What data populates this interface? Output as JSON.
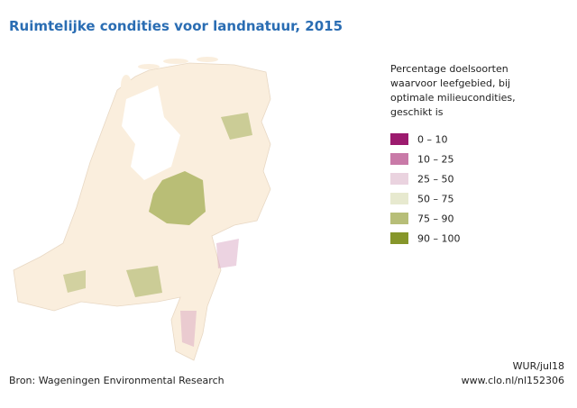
{
  "header": {
    "title": "Ruimtelijke condities voor landnatuur, 2015"
  },
  "legend": {
    "title_lines": [
      "Percentage doelsoorten",
      "waarvoor leefgebied, bij",
      "optimale milieucondities,",
      "geschikt is"
    ],
    "items": [
      {
        "label": "0 – 10",
        "color": "#9c1a6e"
      },
      {
        "label": "10 – 25",
        "color": "#c97aa8"
      },
      {
        "label": "25 – 50",
        "color": "#ead3df"
      },
      {
        "label": "50 – 75",
        "color": "#e7e9cf"
      },
      {
        "label": "75 – 90",
        "color": "#b7be78"
      },
      {
        "label": "90 – 100",
        "color": "#86962a"
      }
    ]
  },
  "footer": {
    "source": "Bron: Wageningen Environmental Research",
    "credit": "WUR/jul18",
    "url": "www.clo.nl/nl152306"
  }
}
